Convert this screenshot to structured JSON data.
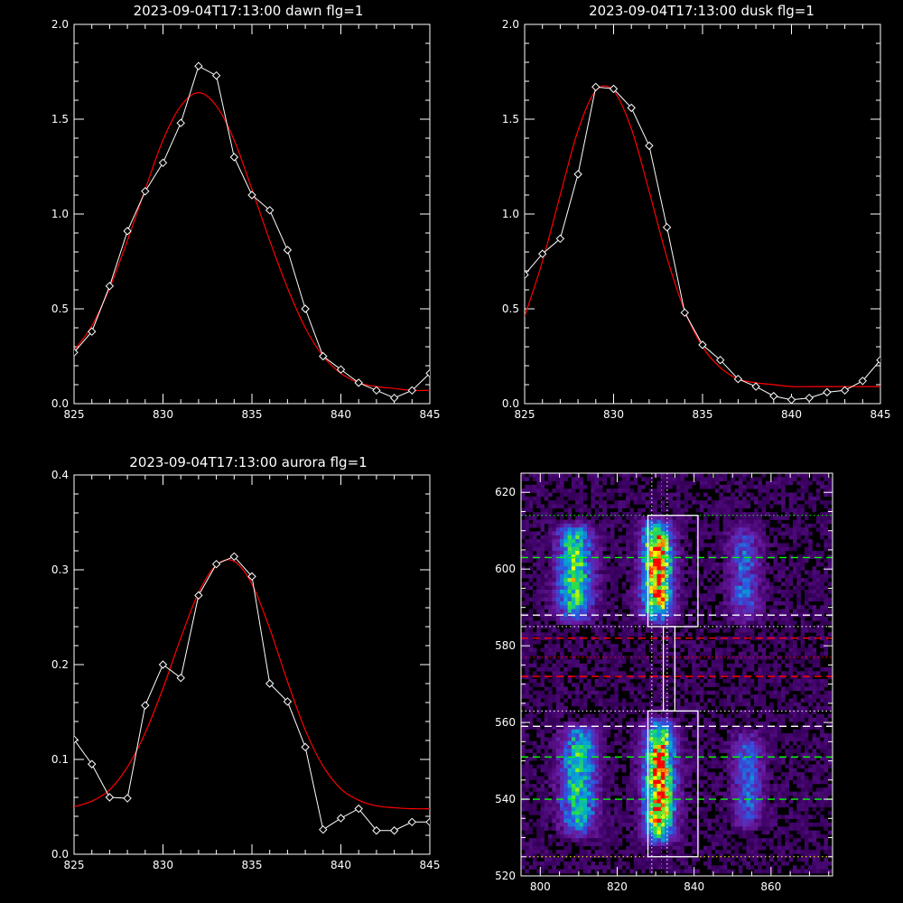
{
  "chart_data": [
    {
      "type": "line",
      "title": "2023-09-04T17:13:00 dawn flg=1",
      "xlim": [
        825,
        845
      ],
      "ylim": [
        0.0,
        2.0
      ],
      "xticks": [
        825,
        830,
        835,
        840,
        845
      ],
      "yticks": [
        0.0,
        0.5,
        1.0,
        1.5,
        2.0
      ],
      "xtick_labels": [
        "825",
        "830",
        "835",
        "840",
        "845"
      ],
      "ytick_labels": [
        "0.0",
        "0.5",
        "1.0",
        "1.5",
        "2.0"
      ],
      "series": [
        {
          "kind": "observed",
          "color": "#ffffff",
          "marker": "diamond",
          "x": [
            825,
            826,
            827,
            828,
            829,
            830,
            831,
            832,
            833,
            834,
            835,
            836,
            837,
            838,
            839,
            840,
            841,
            842,
            843,
            844,
            845
          ],
          "y": [
            0.27,
            0.38,
            0.62,
            0.91,
            1.12,
            1.27,
            1.48,
            1.78,
            1.73,
            1.3,
            1.1,
            1.02,
            0.81,
            0.5,
            0.25,
            0.18,
            0.11,
            0.07,
            0.03,
            0.07,
            0.16
          ]
        },
        {
          "kind": "fit",
          "color": "#ff0000",
          "x": [
            825,
            826,
            827,
            828,
            829,
            830,
            831,
            832,
            833,
            834,
            835,
            836,
            837,
            838,
            839,
            840,
            841,
            842,
            843,
            844,
            845
          ],
          "y": [
            0.28,
            0.41,
            0.61,
            0.86,
            1.13,
            1.39,
            1.57,
            1.64,
            1.57,
            1.39,
            1.13,
            0.86,
            0.61,
            0.4,
            0.25,
            0.16,
            0.11,
            0.09,
            0.08,
            0.07,
            0.07
          ]
        }
      ]
    },
    {
      "type": "line",
      "title": "2023-09-04T17:13:00 dusk flg=1",
      "xlim": [
        825,
        845
      ],
      "ylim": [
        0.0,
        2.0
      ],
      "xticks": [
        825,
        830,
        835,
        840,
        845
      ],
      "yticks": [
        0.0,
        0.5,
        1.0,
        1.5,
        2.0
      ],
      "xtick_labels": [
        "825",
        "830",
        "835",
        "840",
        "845"
      ],
      "ytick_labels": [
        "0.0",
        "0.5",
        "1.0",
        "1.5",
        "2.0"
      ],
      "series": [
        {
          "kind": "observed",
          "color": "#ffffff",
          "marker": "diamond",
          "x": [
            825,
            826,
            827,
            828,
            829,
            830,
            831,
            832,
            833,
            834,
            835,
            836,
            837,
            838,
            839,
            840,
            841,
            842,
            843,
            844,
            845
          ],
          "y": [
            0.68,
            0.79,
            0.87,
            1.21,
            1.67,
            1.66,
            1.56,
            1.36,
            0.93,
            0.48,
            0.31,
            0.23,
            0.13,
            0.09,
            0.04,
            0.02,
            0.03,
            0.06,
            0.07,
            0.12,
            0.23
          ]
        },
        {
          "kind": "fit",
          "color": "#ff0000",
          "x": [
            825,
            826,
            827,
            828,
            829,
            830,
            831,
            832,
            833,
            834,
            835,
            836,
            837,
            838,
            839,
            840,
            841,
            842,
            843,
            844,
            845
          ],
          "y": [
            0.46,
            0.75,
            1.1,
            1.44,
            1.65,
            1.65,
            1.45,
            1.12,
            0.77,
            0.49,
            0.3,
            0.19,
            0.13,
            0.11,
            0.1,
            0.09,
            0.09,
            0.09,
            0.09,
            0.09,
            0.09
          ]
        }
      ]
    },
    {
      "type": "line",
      "title": "2023-09-04T17:13:00 aurora flg=1",
      "xlim": [
        825,
        845
      ],
      "ylim": [
        0.0,
        0.4
      ],
      "xticks": [
        825,
        830,
        835,
        840,
        845
      ],
      "yticks": [
        0.0,
        0.1,
        0.2,
        0.3,
        0.4
      ],
      "xtick_labels": [
        "825",
        "830",
        "835",
        "840",
        "845"
      ],
      "ytick_labels": [
        "0.0",
        "0.1",
        "0.2",
        "0.3",
        "0.4"
      ],
      "series": [
        {
          "kind": "observed",
          "color": "#ffffff",
          "marker": "diamond",
          "x": [
            825,
            826,
            827,
            828,
            829,
            830,
            831,
            832,
            833,
            834,
            835,
            836,
            837,
            838,
            839,
            840,
            841,
            842,
            843,
            844,
            845
          ],
          "y": [
            0.121,
            0.095,
            0.06,
            0.059,
            0.157,
            0.2,
            0.186,
            0.273,
            0.306,
            0.314,
            0.293,
            0.18,
            0.161,
            0.113,
            0.026,
            0.038,
            0.048,
            0.025,
            0.025,
            0.034,
            0.034
          ]
        },
        {
          "kind": "fit",
          "color": "#ff0000",
          "x": [
            825,
            826,
            827,
            828,
            829,
            830,
            831,
            832,
            833,
            834,
            835,
            836,
            837,
            838,
            839,
            840,
            841,
            842,
            843,
            844,
            845
          ],
          "y": [
            0.05,
            0.056,
            0.068,
            0.092,
            0.128,
            0.175,
            0.228,
            0.276,
            0.305,
            0.309,
            0.285,
            0.238,
            0.182,
            0.131,
            0.093,
            0.069,
            0.057,
            0.051,
            0.049,
            0.048,
            0.048
          ]
        }
      ]
    },
    {
      "type": "heatmap",
      "xlim": [
        795,
        876
      ],
      "ylim": [
        520,
        625
      ],
      "xticks": [
        800,
        820,
        840,
        860
      ],
      "yticks": [
        520,
        540,
        560,
        580,
        600,
        620
      ],
      "xtick_labels": [
        "800",
        "820",
        "840",
        "860"
      ],
      "ytick_labels": [
        "520",
        "540",
        "560",
        "580",
        "600",
        "620"
      ],
      "colormap": [
        "#000000",
        "#3a0060",
        "#6a1aa0",
        "#3050e0",
        "#00b0d0",
        "#30e040",
        "#ffff00",
        "#ff0000"
      ],
      "emission_bands": [
        {
          "x_center": 809,
          "x_width": 3.5,
          "y_from": 586,
          "y_to": 612,
          "peak": 0.68
        },
        {
          "x_center": 830.5,
          "x_width": 3.0,
          "y_from": 586,
          "y_to": 613,
          "peak": 0.98
        },
        {
          "x_center": 853,
          "x_width": 3.0,
          "y_from": 586,
          "y_to": 612,
          "peak": 0.35
        },
        {
          "x_center": 810,
          "x_width": 3.5,
          "y_from": 530,
          "y_to": 560,
          "peak": 0.62
        },
        {
          "x_center": 831,
          "x_width": 3.0,
          "y_from": 528,
          "y_to": 561,
          "peak": 0.98
        },
        {
          "x_center": 854,
          "x_width": 3.0,
          "y_from": 532,
          "y_to": 558,
          "peak": 0.35
        }
      ],
      "white_boxes": [
        {
          "x0": 828,
          "x1": 841,
          "y0": 585,
          "y1": 614
        },
        {
          "x0": 828,
          "x1": 841,
          "y0": 525,
          "y1": 563
        },
        {
          "x0": 832,
          "x1": 835,
          "y0": 563,
          "y1": 585
        }
      ],
      "vertical_dotted_lines": [
        {
          "x": 829,
          "color": "#ffffff"
        },
        {
          "x": 831.5,
          "color": "#ff00ff"
        },
        {
          "x": 833,
          "color": "#ffffff"
        }
      ],
      "horizontal_lines": [
        {
          "y": 614,
          "color": "#00ff00",
          "style": "dotted"
        },
        {
          "y": 603,
          "color": "#00ff00",
          "style": "dashed"
        },
        {
          "y": 588,
          "color": "#ffffff",
          "style": "dashed"
        },
        {
          "y": 585,
          "color": "#ffffff",
          "style": "dotted"
        },
        {
          "y": 582,
          "color": "#ff0000",
          "style": "dashed"
        },
        {
          "y": 577,
          "color": "#ff0000",
          "style": "dotted"
        },
        {
          "y": 572,
          "color": "#ff0000",
          "style": "dashed"
        },
        {
          "y": 563,
          "color": "#ffffff",
          "style": "dotted"
        },
        {
          "y": 559,
          "color": "#ffffff",
          "style": "dashed"
        },
        {
          "y": 551,
          "color": "#00ff00",
          "style": "dashed"
        },
        {
          "y": 540,
          "color": "#00ff00",
          "style": "dashed"
        },
        {
          "y": 525,
          "color": "#ffff00",
          "style": "dotted"
        }
      ]
    }
  ]
}
